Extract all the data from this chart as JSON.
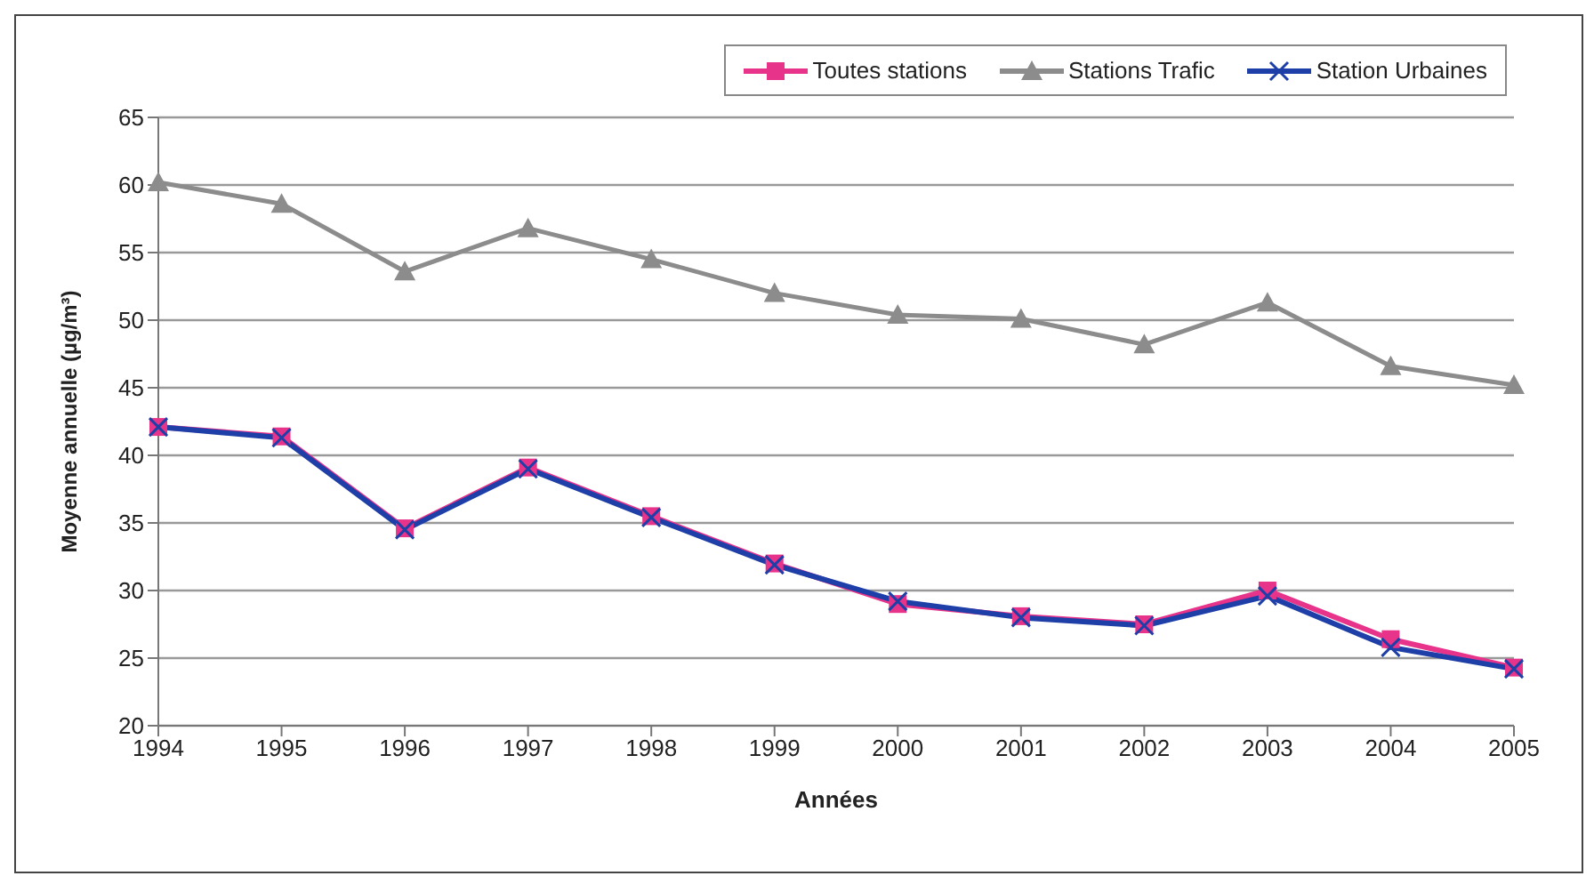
{
  "chart_data": {
    "type": "line",
    "xlabel": "Années",
    "ylabel": "Moyenne annuelle (µg/m³)",
    "categories": [
      "1994",
      "1995",
      "1996",
      "1997",
      "1998",
      "1999",
      "2000",
      "2001",
      "2002",
      "2003",
      "2004",
      "2005"
    ],
    "series": [
      {
        "name": "Toutes stations",
        "color": "#e8338a",
        "marker": "square",
        "values": [
          42.1,
          41.4,
          34.6,
          39.1,
          35.5,
          32.0,
          29.0,
          28.1,
          27.5,
          30.0,
          26.4,
          24.3
        ]
      },
      {
        "name": "Stations Trafic",
        "color": "#8c8c8c",
        "marker": "triangle",
        "values": [
          60.2,
          58.6,
          53.6,
          56.8,
          54.5,
          52.0,
          50.4,
          50.1,
          48.2,
          51.3,
          46.6,
          45.2
        ]
      },
      {
        "name": "Station Urbaines",
        "color": "#1f3fa8",
        "marker": "cross",
        "values": [
          42.1,
          41.3,
          34.5,
          39.0,
          35.4,
          31.9,
          29.2,
          28.0,
          27.4,
          29.6,
          25.8,
          24.2
        ]
      }
    ],
    "ylim": [
      20,
      65
    ],
    "yticks": [
      20,
      25,
      30,
      35,
      40,
      45,
      50,
      55,
      60,
      65
    ],
    "grid": "y",
    "legend": "top right"
  }
}
